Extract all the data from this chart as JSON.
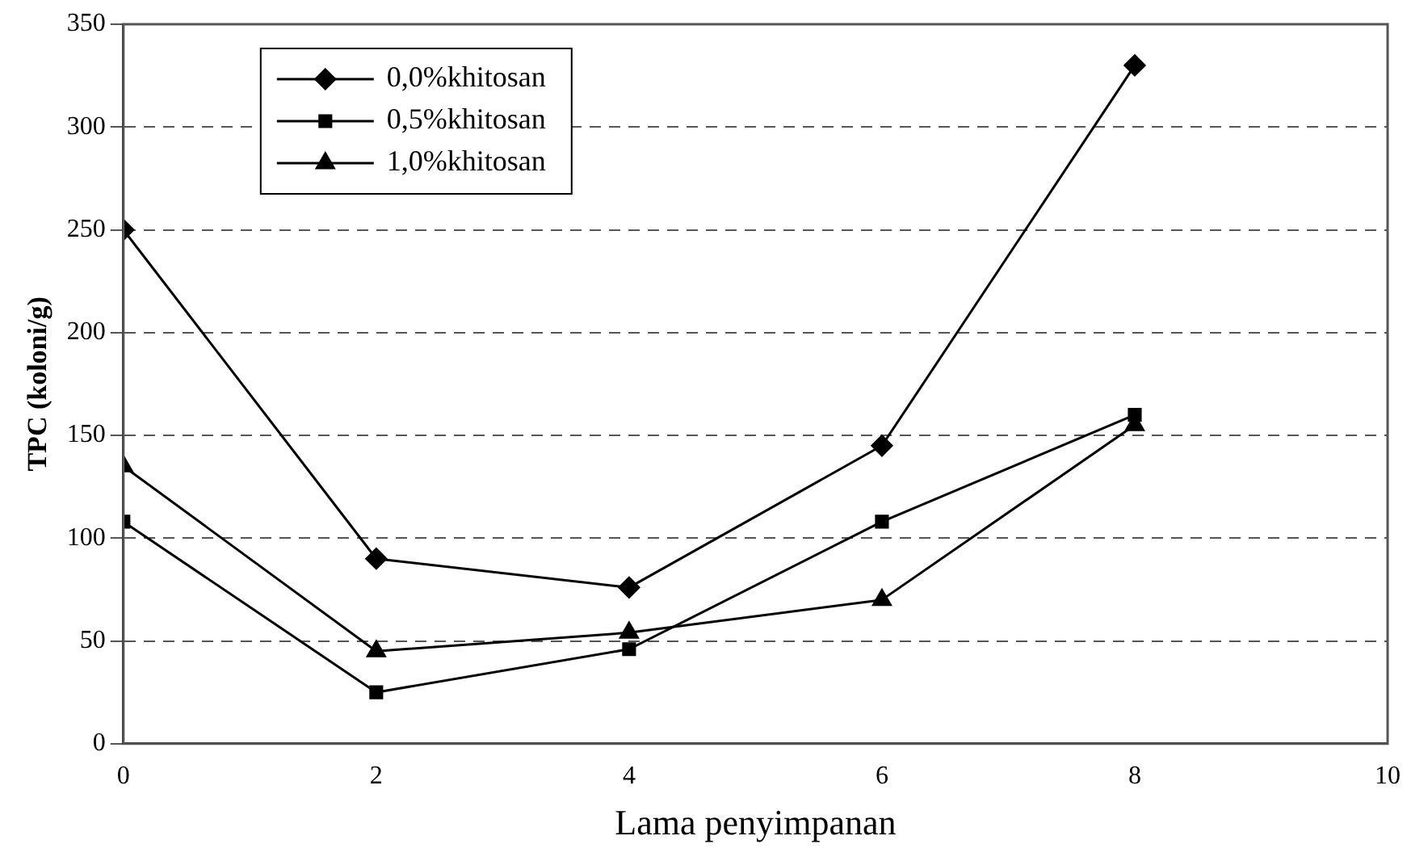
{
  "chart_data": {
    "type": "line",
    "xlabel": "Lama penyimpanan",
    "ylabel": "TPC (koloni/g)",
    "x": [
      0,
      2,
      4,
      6,
      8
    ],
    "series": [
      {
        "name": "0,0%khitosan",
        "color": "#000000",
        "marker": "diamond",
        "values": [
          250,
          90,
          76,
          145,
          330
        ]
      },
      {
        "name": "0,5%khitosan",
        "color": "#000000",
        "marker": "square",
        "values": [
          108,
          25,
          46,
          108,
          160
        ]
      },
      {
        "name": "1,0%khitosan",
        "color": "#000000",
        "marker": "triangle",
        "values": [
          135,
          45,
          54,
          70,
          155
        ]
      }
    ],
    "xlim": [
      0,
      10
    ],
    "xticks": [
      0,
      2,
      4,
      6,
      8,
      10
    ],
    "ylim": [
      0,
      350
    ],
    "yticks": [
      0,
      50,
      100,
      150,
      200,
      250,
      300,
      350
    ],
    "grid": "y",
    "legend": "top left",
    "line_style": "solid"
  }
}
